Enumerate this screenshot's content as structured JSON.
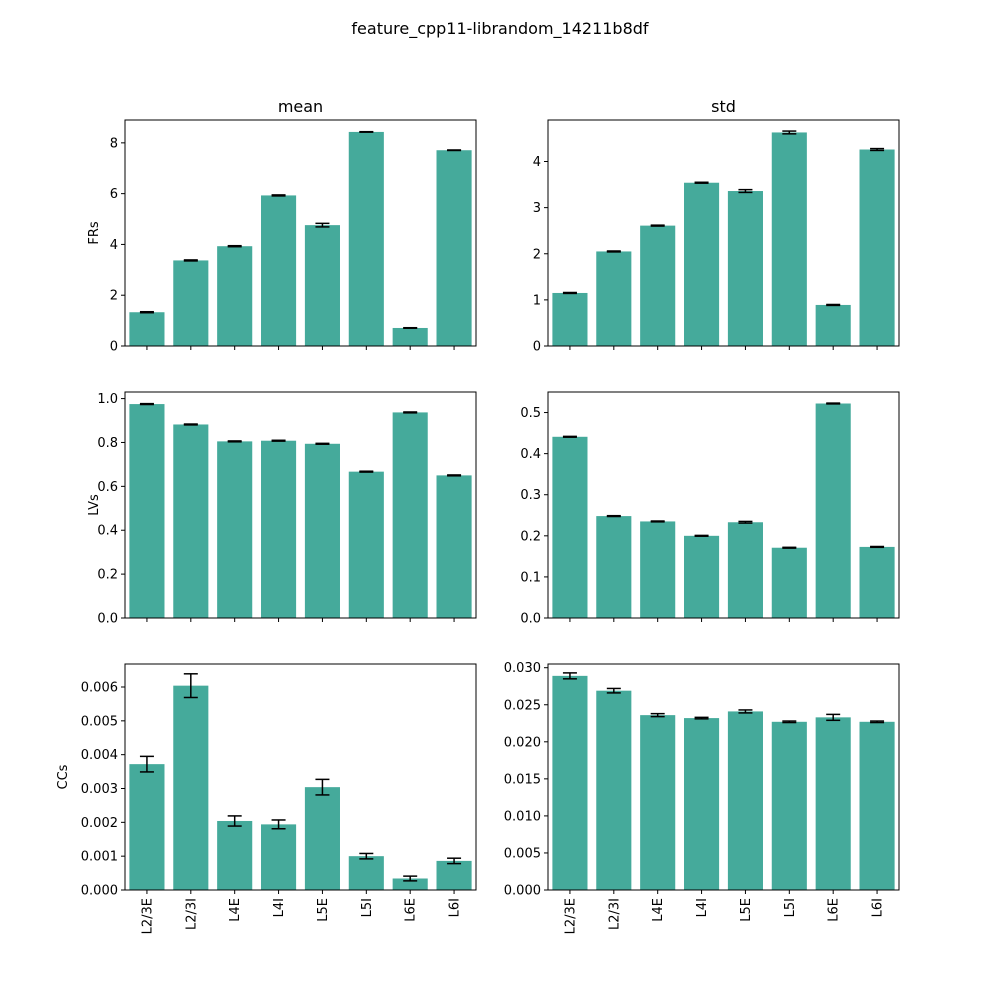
{
  "chart_data": {
    "type": "bar",
    "title": "feature_cpp11-librandom_14211b8df",
    "categories": [
      "L2/3E",
      "L2/3I",
      "L4E",
      "L4I",
      "L5E",
      "L5I",
      "L6E",
      "L6I"
    ],
    "bar_color": "#45aa9b",
    "error_color": "#000000",
    "column_titles": [
      "mean",
      "std"
    ],
    "panels": [
      {
        "row": 0,
        "col": 0,
        "ylabel": "FRs",
        "ylim": [
          0,
          8.9
        ],
        "yticks": [
          0,
          2,
          4,
          6,
          8
        ],
        "values": [
          1.33,
          3.37,
          3.93,
          5.93,
          4.76,
          8.43,
          0.71,
          7.71
        ],
        "errors": [
          0.02,
          0.02,
          0.02,
          0.02,
          0.07,
          0.01,
          0.01,
          0.01
        ]
      },
      {
        "row": 0,
        "col": 1,
        "ylabel": "",
        "ylim": [
          0,
          4.9
        ],
        "yticks": [
          0,
          1,
          2,
          3,
          4
        ],
        "values": [
          1.15,
          2.05,
          2.61,
          3.54,
          3.36,
          4.63,
          0.89,
          4.26
        ],
        "errors": [
          0.01,
          0.01,
          0.01,
          0.01,
          0.03,
          0.03,
          0.01,
          0.02
        ]
      },
      {
        "row": 1,
        "col": 0,
        "ylabel": "LVs",
        "ylim": [
          0,
          1.03
        ],
        "yticks": [
          0.0,
          0.2,
          0.4,
          0.6,
          0.8,
          1.0
        ],
        "values": [
          0.975,
          0.882,
          0.805,
          0.808,
          0.794,
          0.667,
          0.937,
          0.65
        ],
        "errors": [
          0.002,
          0.002,
          0.002,
          0.002,
          0.002,
          0.002,
          0.002,
          0.002
        ]
      },
      {
        "row": 1,
        "col": 1,
        "ylabel": "",
        "ylim": [
          0,
          0.55
        ],
        "yticks": [
          0.0,
          0.1,
          0.2,
          0.3,
          0.4,
          0.5
        ],
        "values": [
          0.441,
          0.248,
          0.235,
          0.2,
          0.233,
          0.171,
          0.522,
          0.173
        ],
        "errors": [
          0.001,
          0.001,
          0.001,
          0.001,
          0.002,
          0.001,
          0.001,
          0.001
        ]
      },
      {
        "row": 2,
        "col": 0,
        "ylabel": "CCs",
        "ylim": [
          0,
          0.00668
        ],
        "yticks": [
          0.0,
          0.001,
          0.002,
          0.003,
          0.004,
          0.005,
          0.006
        ],
        "tick_decimals": 3,
        "values": [
          0.00372,
          0.00604,
          0.00204,
          0.00194,
          0.00304,
          0.001,
          0.00034,
          0.00086
        ],
        "errors": [
          0.00023,
          0.00035,
          0.00015,
          0.00013,
          0.00023,
          8e-05,
          7e-05,
          8e-05
        ]
      },
      {
        "row": 2,
        "col": 1,
        "ylabel": "",
        "ylim": [
          0,
          0.0305
        ],
        "yticks": [
          0.0,
          0.005,
          0.01,
          0.015,
          0.02,
          0.025,
          0.03
        ],
        "tick_decimals": 3,
        "values": [
          0.0289,
          0.0269,
          0.0236,
          0.0232,
          0.0241,
          0.0227,
          0.0233,
          0.0227
        ],
        "errors": [
          0.0004,
          0.0003,
          0.0002,
          0.0001,
          0.0002,
          0.0001,
          0.0004,
          0.0001
        ]
      }
    ]
  }
}
